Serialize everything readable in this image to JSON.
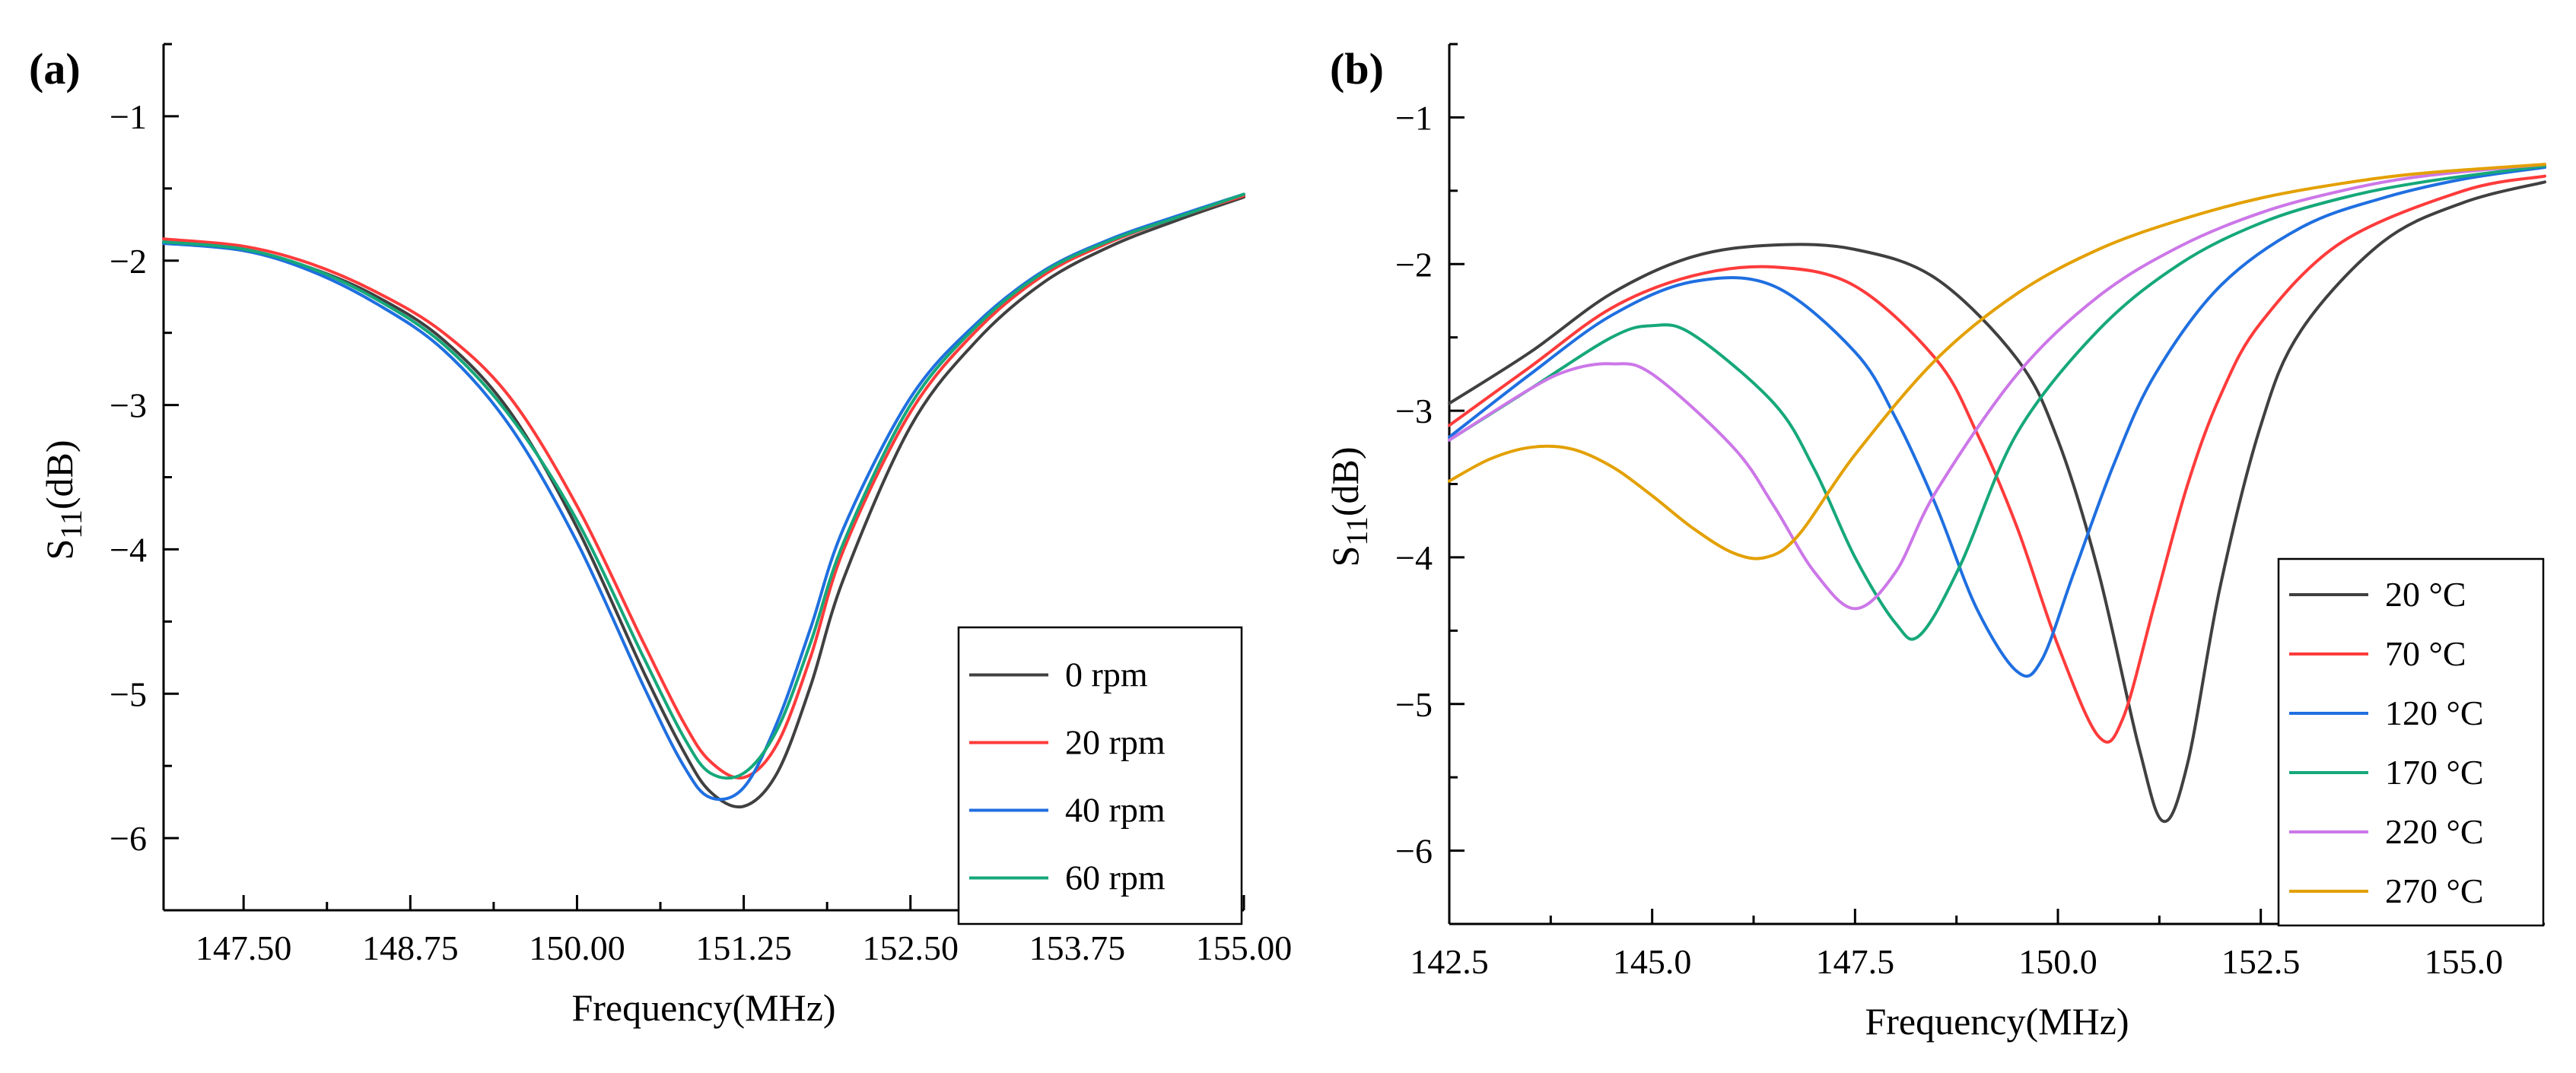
{
  "chart_data": [
    {
      "panel_label": "(a)",
      "type": "line",
      "xlabel": "Frequency(MHz)",
      "ylabel_main": "S",
      "ylabel_sub": "11",
      "ylabel_tail": "(dB)",
      "xlim": [
        146.9,
        155.0
      ],
      "ylim": [
        -6.5,
        -0.5
      ],
      "xticks": [
        147.5,
        148.75,
        150.0,
        151.25,
        152.5,
        153.75,
        155.0
      ],
      "xtick_labels": [
        "147.50",
        "148.75",
        "150.00",
        "151.25",
        "152.50",
        "153.75",
        "155.00"
      ],
      "yticks": [
        -6,
        -5,
        -4,
        -3,
        -2,
        -1
      ],
      "ytick_labels": [
        "−6",
        "−5",
        "−4",
        "−3",
        "−2",
        "−1"
      ],
      "legend_position": "bottom-right",
      "x": [
        146.9,
        147.5,
        148.0,
        148.5,
        149.0,
        149.5,
        150.0,
        150.5,
        150.8,
        151.0,
        151.25,
        151.5,
        151.75,
        152.0,
        152.5,
        153.0,
        153.5,
        154.0,
        154.5,
        155.0
      ],
      "series": [
        {
          "name": "0 rpm",
          "color": "#404040",
          "values": [
            -1.87,
            -1.93,
            -2.05,
            -2.25,
            -2.55,
            -3.05,
            -3.85,
            -4.85,
            -5.4,
            -5.68,
            -5.78,
            -5.55,
            -4.95,
            -4.2,
            -3.15,
            -2.55,
            -2.15,
            -1.9,
            -1.72,
            -1.56
          ]
        },
        {
          "name": "20 rpm",
          "color": "#ff3b3b",
          "values": [
            -1.85,
            -1.9,
            -2.02,
            -2.22,
            -2.5,
            -2.95,
            -3.7,
            -4.65,
            -5.2,
            -5.47,
            -5.58,
            -5.35,
            -4.75,
            -4.0,
            -3.05,
            -2.48,
            -2.1,
            -1.87,
            -1.7,
            -1.55
          ]
        },
        {
          "name": "40 rpm",
          "color": "#1f6fe0",
          "values": [
            -1.88,
            -1.93,
            -2.07,
            -2.3,
            -2.62,
            -3.15,
            -3.95,
            -4.95,
            -5.5,
            -5.72,
            -5.65,
            -5.2,
            -4.55,
            -3.85,
            -2.95,
            -2.43,
            -2.07,
            -1.85,
            -1.69,
            -1.54
          ]
        },
        {
          "name": "60 rpm",
          "color": "#16a87a",
          "values": [
            -1.87,
            -1.92,
            -2.05,
            -2.27,
            -2.58,
            -3.08,
            -3.8,
            -4.75,
            -5.3,
            -5.55,
            -5.55,
            -5.25,
            -4.65,
            -3.95,
            -3.0,
            -2.45,
            -2.08,
            -1.86,
            -1.7,
            -1.54
          ]
        }
      ]
    },
    {
      "panel_label": "(b)",
      "type": "line",
      "xlabel": "Frequency(MHz)",
      "ylabel_main": "S",
      "ylabel_sub": "11",
      "ylabel_tail": "(dB)",
      "xlim": [
        142.5,
        156.0
      ],
      "ylim": [
        -6.5,
        -0.5
      ],
      "xticks": [
        142.5,
        145.0,
        147.5,
        150.0,
        152.5,
        155.0
      ],
      "xtick_labels": [
        "142.5",
        "145.0",
        "147.5",
        "150.0",
        "152.5",
        "155.0"
      ],
      "yticks": [
        -6,
        -5,
        -4,
        -3,
        -2,
        -1
      ],
      "ytick_labels": [
        "−6",
        "−5",
        "−4",
        "−3",
        "−2",
        "−1"
      ],
      "legend_position": "bottom-right",
      "series": [
        {
          "name": "20 °C",
          "color": "#404040",
          "x": [
            142.5,
            143.5,
            144.5,
            145.5,
            146.5,
            147.5,
            148.5,
            149.5,
            150.0,
            150.5,
            151.0,
            151.3,
            151.6,
            152.0,
            152.5,
            153.0,
            154.0,
            155.0,
            156.0
          ],
          "values": [
            -2.95,
            -2.6,
            -2.2,
            -1.95,
            -1.87,
            -1.9,
            -2.1,
            -2.65,
            -3.2,
            -4.1,
            -5.3,
            -5.8,
            -5.4,
            -4.2,
            -3.1,
            -2.45,
            -1.85,
            -1.58,
            -1.44
          ]
        },
        {
          "name": "70 °C",
          "color": "#ff3b3b",
          "x": [
            142.5,
            143.5,
            144.5,
            145.5,
            146.5,
            147.5,
            148.5,
            149.0,
            149.5,
            150.0,
            150.5,
            150.8,
            151.2,
            151.6,
            152.0,
            152.5,
            153.5,
            155.0,
            156.0
          ],
          "values": [
            -3.1,
            -2.7,
            -2.3,
            -2.08,
            -2.02,
            -2.15,
            -2.65,
            -3.15,
            -3.8,
            -4.6,
            -5.22,
            -5.1,
            -4.3,
            -3.5,
            -2.9,
            -2.4,
            -1.85,
            -1.5,
            -1.4
          ]
        },
        {
          "name": "120 °C",
          "color": "#1f6fe0",
          "x": [
            142.5,
            143.5,
            144.5,
            145.5,
            146.5,
            147.5,
            148.0,
            148.5,
            149.0,
            149.5,
            149.8,
            150.2,
            150.7,
            151.2,
            152.0,
            153.0,
            154.0,
            155.0,
            156.0
          ],
          "values": [
            -3.18,
            -2.75,
            -2.35,
            -2.12,
            -2.15,
            -2.6,
            -3.05,
            -3.65,
            -4.35,
            -4.78,
            -4.7,
            -4.1,
            -3.35,
            -2.75,
            -2.15,
            -1.75,
            -1.55,
            -1.42,
            -1.34
          ]
        },
        {
          "name": "170 °C",
          "color": "#16a87a",
          "x": [
            142.5,
            143.5,
            144.5,
            145.0,
            145.5,
            146.5,
            147.0,
            147.5,
            148.0,
            148.3,
            148.8,
            149.5,
            150.5,
            151.5,
            152.5,
            153.5,
            154.5,
            156.0
          ],
          "values": [
            -3.2,
            -2.85,
            -2.5,
            -2.42,
            -2.48,
            -2.95,
            -3.4,
            -4.0,
            -4.45,
            -4.53,
            -4.05,
            -3.15,
            -2.45,
            -2.0,
            -1.72,
            -1.55,
            -1.44,
            -1.33
          ]
        },
        {
          "name": "220 °C",
          "color": "#cc77e8",
          "x": [
            142.5,
            143.5,
            144.0,
            144.5,
            145.0,
            146.0,
            146.5,
            147.0,
            147.5,
            148.0,
            148.5,
            149.5,
            150.5,
            151.5,
            152.5,
            153.5,
            154.5,
            156.0
          ],
          "values": [
            -3.2,
            -2.85,
            -2.72,
            -2.68,
            -2.75,
            -3.25,
            -3.65,
            -4.1,
            -4.35,
            -4.1,
            -3.55,
            -2.75,
            -2.22,
            -1.88,
            -1.65,
            -1.5,
            -1.4,
            -1.32
          ]
        },
        {
          "name": "270 °C",
          "color": "#e3a000",
          "x": [
            142.5,
            143.0,
            143.5,
            144.0,
            144.5,
            145.0,
            145.5,
            146.0,
            146.4,
            146.8,
            147.5,
            148.5,
            149.5,
            150.5,
            151.5,
            152.5,
            153.5,
            154.5,
            156.0
          ],
          "values": [
            -3.48,
            -3.33,
            -3.25,
            -3.26,
            -3.38,
            -3.58,
            -3.8,
            -3.97,
            -4.0,
            -3.85,
            -3.3,
            -2.65,
            -2.2,
            -1.9,
            -1.7,
            -1.55,
            -1.45,
            -1.38,
            -1.32
          ]
        }
      ]
    }
  ]
}
